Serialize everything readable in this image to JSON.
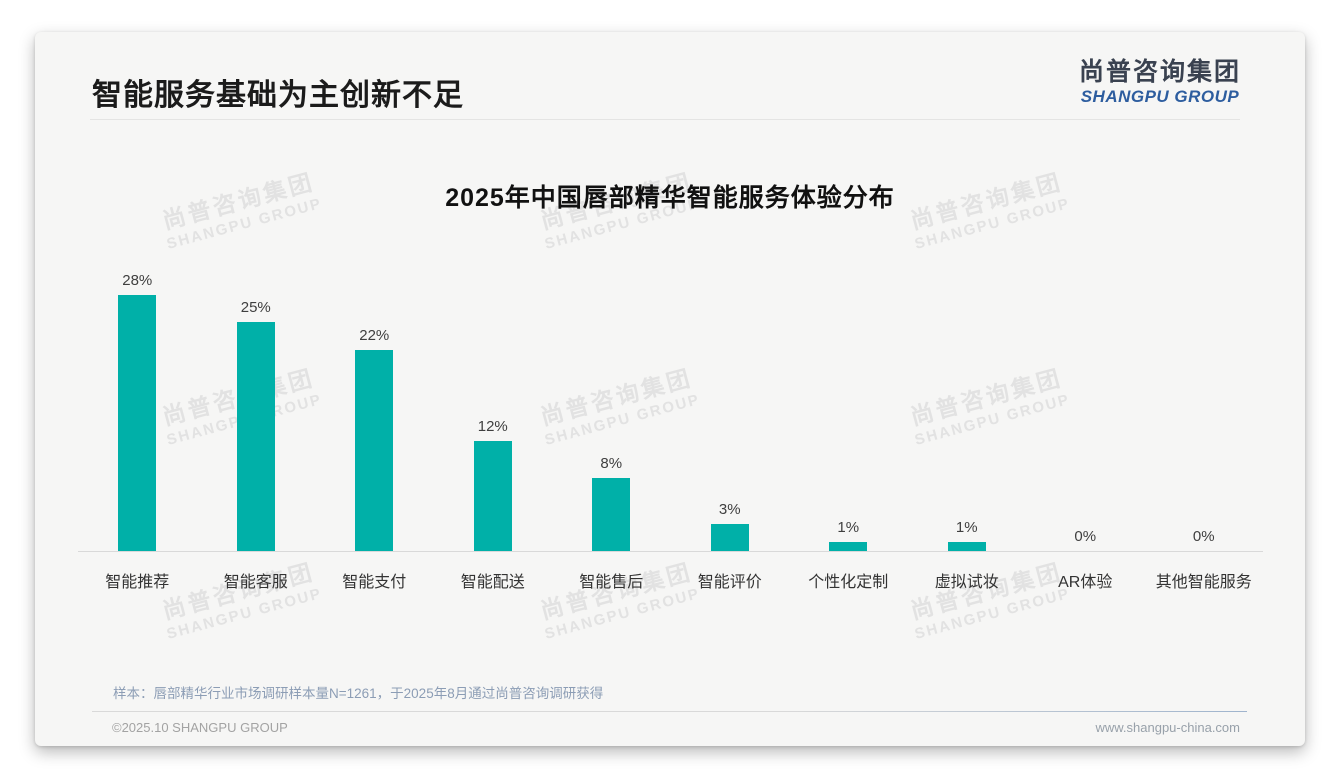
{
  "page": {
    "title": "智能服务基础为主创新不足",
    "logo": {
      "cn": "尚普咨询集团",
      "en": "SHANGPU GROUP"
    },
    "watermark": {
      "cn": "尚普咨询集团",
      "en": "SHANGPU GROUP"
    },
    "note": "样本：唇部精华行业市场调研样本量N=1261，于2025年8月通过尚普咨询调研获得",
    "footer": {
      "copyright": "©2025.10 SHANGPU GROUP",
      "website": "www.shangpu-china.com"
    }
  },
  "chart_data": {
    "type": "bar",
    "title": "2025年中国唇部精华智能服务体验分布",
    "categories": [
      "智能推荐",
      "智能客服",
      "智能支付",
      "智能配送",
      "智能售后",
      "智能评价",
      "个性化定制",
      "虚拟试妆",
      "AR体验",
      "其他智能服务"
    ],
    "values": [
      28,
      25,
      22,
      12,
      8,
      3,
      1,
      1,
      0,
      0
    ],
    "value_labels": [
      "28%",
      "25%",
      "22%",
      "12%",
      "8%",
      "3%",
      "1%",
      "1%",
      "0%",
      "0%"
    ],
    "unit": "%",
    "ylim": [
      0,
      30
    ],
    "bar_color": "#00b0a8",
    "grid": false,
    "legend": "none",
    "value_label_position": "above-bar"
  }
}
